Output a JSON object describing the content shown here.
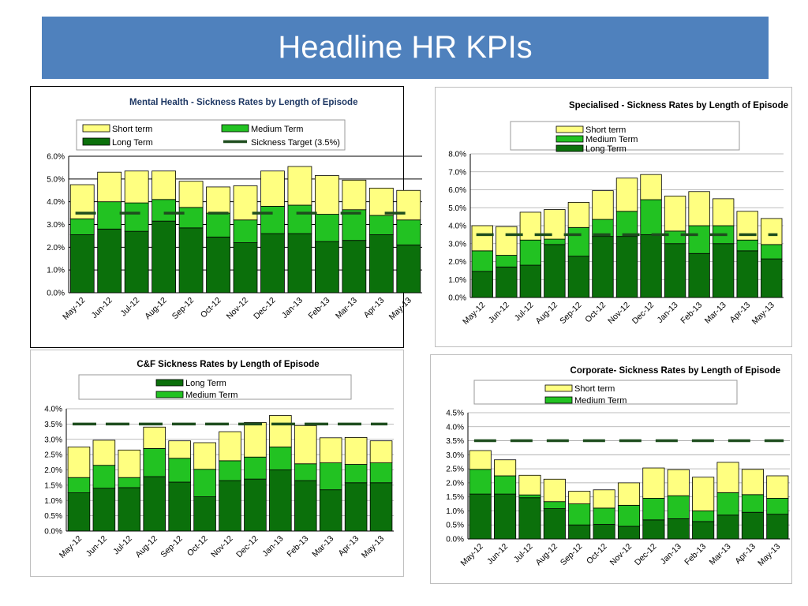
{
  "slide_title": "Headline HR KPIs",
  "colors": {
    "short": "#ffff80",
    "medium": "#22c222",
    "long": "#0b700b",
    "target": "#1e4d1e",
    "banner": "#4f81bd"
  },
  "chart_data": [
    {
      "type": "bar",
      "stacked": true,
      "title": "Mental Health - Sickness Rates by Length of Episode",
      "categories": [
        "May-12",
        "Jun-12",
        "Jul-12",
        "Aug-12",
        "Sep-12",
        "Oct-12",
        "Nov-12",
        "Dec-12",
        "Jan-13",
        "Feb-13",
        "Mar-13",
        "Apr-13",
        "May-13"
      ],
      "series": [
        {
          "name": "Long Term",
          "values": [
            2.55,
            2.8,
            2.7,
            3.15,
            2.85,
            2.45,
            2.2,
            2.6,
            2.6,
            2.25,
            2.3,
            2.55,
            2.1
          ]
        },
        {
          "name": "Medium Term",
          "values": [
            0.7,
            1.2,
            1.25,
            0.95,
            0.9,
            1.05,
            1.0,
            1.2,
            1.25,
            1.2,
            1.35,
            0.85,
            1.1
          ]
        },
        {
          "name": "Short term",
          "values": [
            1.5,
            1.3,
            1.4,
            1.25,
            1.15,
            1.15,
            1.5,
            1.55,
            1.7,
            1.7,
            1.3,
            1.2,
            1.3
          ]
        }
      ],
      "target": {
        "name": "Sickness Target (3.5%)",
        "value": 3.5
      },
      "legend_labels": [
        "Short term",
        "Medium Term",
        "Long Term",
        "Sickness Target (3.5%)"
      ],
      "ylim": [
        0,
        6
      ],
      "yticks": [
        "0.0%",
        "1.0%",
        "2.0%",
        "3.0%",
        "4.0%",
        "5.0%",
        "6.0%"
      ],
      "grid": true,
      "legend": "top"
    },
    {
      "type": "bar",
      "stacked": true,
      "title": "Specialised - Sickness Rates by Length of Episode",
      "categories": [
        "May-12",
        "Jun-12",
        "Jul-12",
        "Aug-12",
        "Sep-12",
        "Oct-12",
        "Nov-12",
        "Dec-12",
        "Jan-13",
        "Feb-13",
        "Mar-13",
        "Apr-13",
        "May-13"
      ],
      "series": [
        {
          "name": "Long Term",
          "values": [
            1.45,
            1.7,
            1.8,
            2.95,
            2.3,
            3.4,
            3.4,
            3.5,
            3.0,
            2.45,
            3.0,
            2.6,
            2.15
          ]
        },
        {
          "name": "Medium Term",
          "values": [
            1.15,
            0.65,
            1.4,
            0.3,
            1.6,
            0.95,
            1.4,
            1.95,
            0.7,
            1.55,
            1.0,
            0.6,
            0.8
          ]
        },
        {
          "name": "Short term",
          "values": [
            1.4,
            1.6,
            1.55,
            1.65,
            1.4,
            1.6,
            1.85,
            1.4,
            1.95,
            1.9,
            1.5,
            1.6,
            1.45
          ]
        }
      ],
      "target": {
        "value": 3.5
      },
      "legend_labels": [
        "Short term",
        "Medium Term",
        "Long Term"
      ],
      "ylim": [
        0,
        8
      ],
      "yticks": [
        "0.0%",
        "1.0%",
        "2.0%",
        "3.0%",
        "4.0%",
        "5.0%",
        "6.0%",
        "7.0%",
        "8.0%"
      ],
      "grid": true,
      "legend": "top"
    },
    {
      "type": "bar",
      "stacked": true,
      "title": "C&F Sickness Rates by Length of Episode",
      "categories": [
        "May-12",
        "Jun-12",
        "Jul-12",
        "Aug-12",
        "Sep-12",
        "Oct-12",
        "Nov-12",
        "Dec-12",
        "Jan-13",
        "Feb-13",
        "Mar-13",
        "Apr-13",
        "May-13"
      ],
      "series": [
        {
          "name": "Long Term",
          "values": [
            1.25,
            1.4,
            1.42,
            1.78,
            1.6,
            1.12,
            1.65,
            1.7,
            2.0,
            1.65,
            1.35,
            1.58,
            1.58
          ]
        },
        {
          "name": "Medium Term",
          "values": [
            0.5,
            0.75,
            0.33,
            0.92,
            0.78,
            0.9,
            0.65,
            0.72,
            0.75,
            0.55,
            0.88,
            0.6,
            0.65
          ]
        },
        {
          "name": "Short term",
          "values": [
            1.0,
            0.82,
            0.9,
            0.7,
            0.57,
            0.87,
            0.95,
            1.13,
            1.03,
            1.25,
            0.82,
            0.88,
            0.72
          ]
        }
      ],
      "target": {
        "value": 3.5
      },
      "legend_labels": [
        "Long Term",
        "Medium Term"
      ],
      "ylim": [
        0,
        4
      ],
      "yticks": [
        "0.0%",
        "0.5%",
        "1.0%",
        "1.5%",
        "2.0%",
        "2.5%",
        "3.0%",
        "3.5%",
        "4.0%"
      ],
      "grid": true,
      "legend": "top"
    },
    {
      "type": "bar",
      "stacked": true,
      "title": "Corporate- Sickness Rates by Length of Episode",
      "categories": [
        "May-12",
        "Jun-12",
        "Jul-12",
        "Aug-12",
        "Sep-12",
        "Oct-12",
        "Nov-12",
        "Dec-12",
        "Jan-13",
        "Feb-13",
        "Mar-13",
        "Apr-13",
        "May-13"
      ],
      "series": [
        {
          "name": "Long Term",
          "values": [
            1.6,
            1.6,
            1.47,
            1.08,
            0.5,
            0.52,
            0.45,
            0.68,
            0.72,
            0.62,
            0.85,
            0.95,
            0.88
          ]
        },
        {
          "name": "Medium Term",
          "values": [
            0.88,
            0.65,
            0.1,
            0.25,
            0.75,
            0.58,
            0.75,
            0.77,
            0.82,
            0.38,
            0.8,
            0.63,
            0.57
          ]
        },
        {
          "name": "Short term",
          "values": [
            0.67,
            0.57,
            0.7,
            0.8,
            0.45,
            0.65,
            0.8,
            1.08,
            0.93,
            1.2,
            1.08,
            0.9,
            0.8
          ]
        }
      ],
      "target": {
        "value": 3.5
      },
      "legend_labels": [
        "Short term",
        "Medium Term"
      ],
      "ylim": [
        0,
        4.5
      ],
      "yticks": [
        "0.0%",
        "0.5%",
        "1.0%",
        "1.5%",
        "2.0%",
        "2.5%",
        "3.0%",
        "3.5%",
        "4.0%",
        "4.5%"
      ],
      "grid": true,
      "legend": "top"
    }
  ]
}
